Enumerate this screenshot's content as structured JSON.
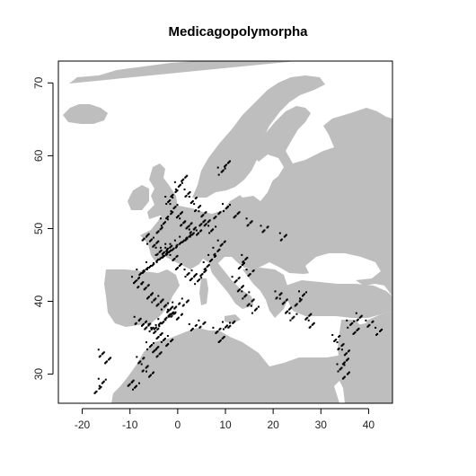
{
  "chart_data": {
    "type": "scatter",
    "title": "Medicagopolymorpha",
    "xlabel": "",
    "ylabel": "",
    "xlim": [
      -25,
      45
    ],
    "ylim": [
      26,
      73
    ],
    "x_ticks": [
      -20,
      -10,
      0,
      10,
      20,
      30,
      40
    ],
    "y_ticks": [
      30,
      40,
      50,
      60,
      70
    ],
    "x_tick_labels": [
      "-20",
      "-10",
      "0",
      "10",
      "20",
      "30",
      "40"
    ],
    "y_tick_labels": [
      "30",
      "40",
      "50",
      "60",
      "70"
    ],
    "grid": false,
    "legend": "none",
    "colors": {
      "land": "#bebebe",
      "sea": "#ffffff",
      "points": "#000000",
      "frame": "#000000"
    },
    "series": [
      {
        "x": [
          -9,
          -8,
          -7,
          -6,
          -5,
          -4,
          -3,
          -2,
          -1,
          0,
          -8.5,
          -7.5,
          -6.5,
          -5.5,
          -4.5,
          -3.5,
          -2.5,
          -1.5,
          -0.5,
          1.5,
          -8,
          -7,
          -6,
          -5,
          -4,
          -3,
          -2,
          -1,
          0,
          1,
          2,
          3,
          -7,
          -6,
          -5,
          -4,
          -3,
          -2,
          -1,
          0,
          2,
          3,
          4,
          5,
          6,
          7,
          8,
          9,
          -4,
          -3,
          -2,
          -1,
          0,
          1,
          2,
          3,
          4,
          5,
          -2,
          -1,
          0,
          1,
          2,
          3,
          4,
          5,
          6,
          7,
          8,
          10,
          12,
          15,
          18,
          22,
          12,
          13,
          14,
          15,
          16,
          13,
          14,
          15,
          21,
          22,
          23,
          24,
          25,
          26,
          27,
          28,
          33,
          34,
          35,
          35,
          34,
          35,
          36,
          37,
          38,
          40,
          42,
          -5,
          -4,
          -3,
          -2,
          -6,
          -5,
          -4,
          -8,
          -7,
          -6,
          -10,
          -9,
          -17,
          -16,
          -15,
          -16,
          3,
          5,
          8,
          9,
          10,
          11,
          9,
          10
        ],
        "y": [
          43,
          42.5,
          42,
          41,
          40.5,
          40,
          39.5,
          39,
          38.5,
          38,
          37.5,
          37,
          36.8,
          36.5,
          36.8,
          37.2,
          38,
          38.5,
          39.5,
          40,
          44,
          44.5,
          45,
          45.5,
          46,
          46.5,
          47,
          47.5,
          48,
          48.5,
          49,
          49.5,
          49,
          48.5,
          48,
          47,
          47,
          47.5,
          46,
          45,
          44,
          43.5,
          43,
          44,
          45,
          46,
          47,
          48,
          50,
          51,
          52,
          53,
          52,
          51,
          50.5,
          50,
          49.5,
          51,
          54,
          55,
          56,
          57,
          55,
          54,
          53,
          52,
          51,
          50,
          52,
          53,
          52,
          51,
          50,
          49,
          43,
          42,
          41,
          40,
          39,
          45,
          46,
          44,
          41,
          40,
          39,
          38,
          40,
          41,
          38,
          37,
          35,
          34,
          33,
          32,
          31,
          30,
          37,
          36,
          38,
          37,
          36,
          36,
          35.5,
          35,
          34.5,
          34,
          33.5,
          33,
          32,
          31,
          30,
          29,
          28.5,
          28,
          29,
          32,
          33,
          36.5,
          37,
          36,
          35,
          36.8,
          37,
          58,
          59
        ]
      }
    ]
  }
}
